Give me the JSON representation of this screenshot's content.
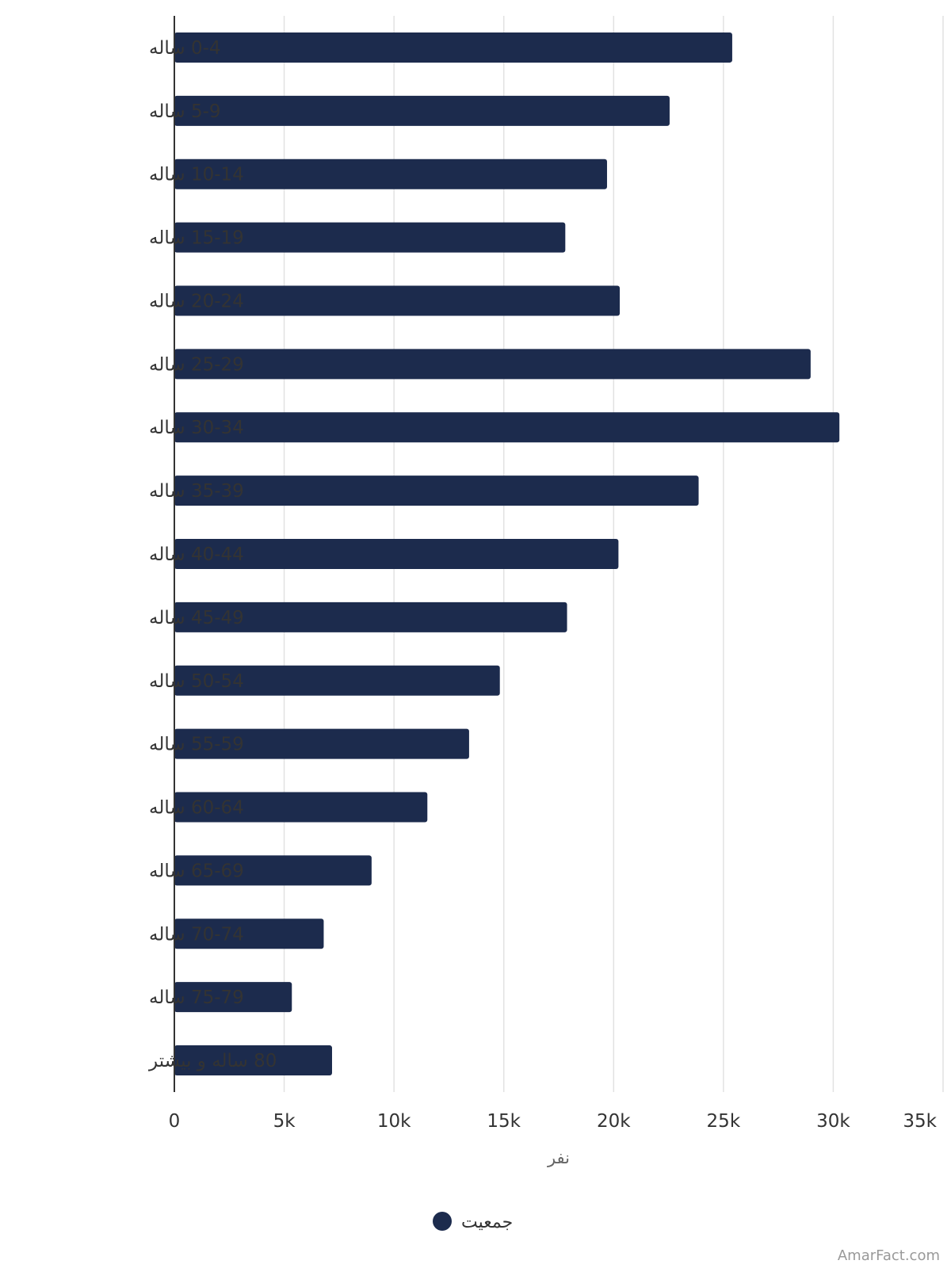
{
  "chart_data": {
    "type": "bar",
    "orientation": "horizontal",
    "categories": [
      "0-4 ساله",
      "5-9 ساله",
      "10-14 ساله",
      "15-19 ساله",
      "20-24 ساله",
      "25-29 ساله",
      "30-34 ساله",
      "35-39 ساله",
      "40-44 ساله",
      "45-49 ساله",
      "50-54 ساله",
      "55-59 ساله",
      "60-64 ساله",
      "65-69 ساله",
      "70-74 ساله",
      "75-79 ساله",
      "80 ساله و بیشتر"
    ],
    "series": [
      {
        "name": "جمعیت",
        "color": "#1c2b4d",
        "values": [
          25400,
          22550,
          19700,
          17800,
          20280,
          28970,
          30280,
          23870,
          20220,
          17880,
          14820,
          13420,
          11520,
          8980,
          6800,
          5350,
          7180
        ]
      }
    ],
    "xlim": [
      0,
      35000
    ],
    "x_ticks": [
      0,
      5000,
      10000,
      15000,
      20000,
      25000,
      30000,
      35000
    ],
    "x_tick_labels": [
      "0",
      "5k",
      "10k",
      "15k",
      "20k",
      "25k",
      "30k",
      "35k"
    ],
    "xlabel": "نفر",
    "ylabel": "",
    "grid": true,
    "legend": {
      "position": "bottom",
      "entries": [
        "جمعیت"
      ]
    }
  },
  "watermark": "AmarFact.com",
  "colors": {
    "bar": "#1c2b4d",
    "grid": "#e2e2e2",
    "axis": "#333333"
  }
}
